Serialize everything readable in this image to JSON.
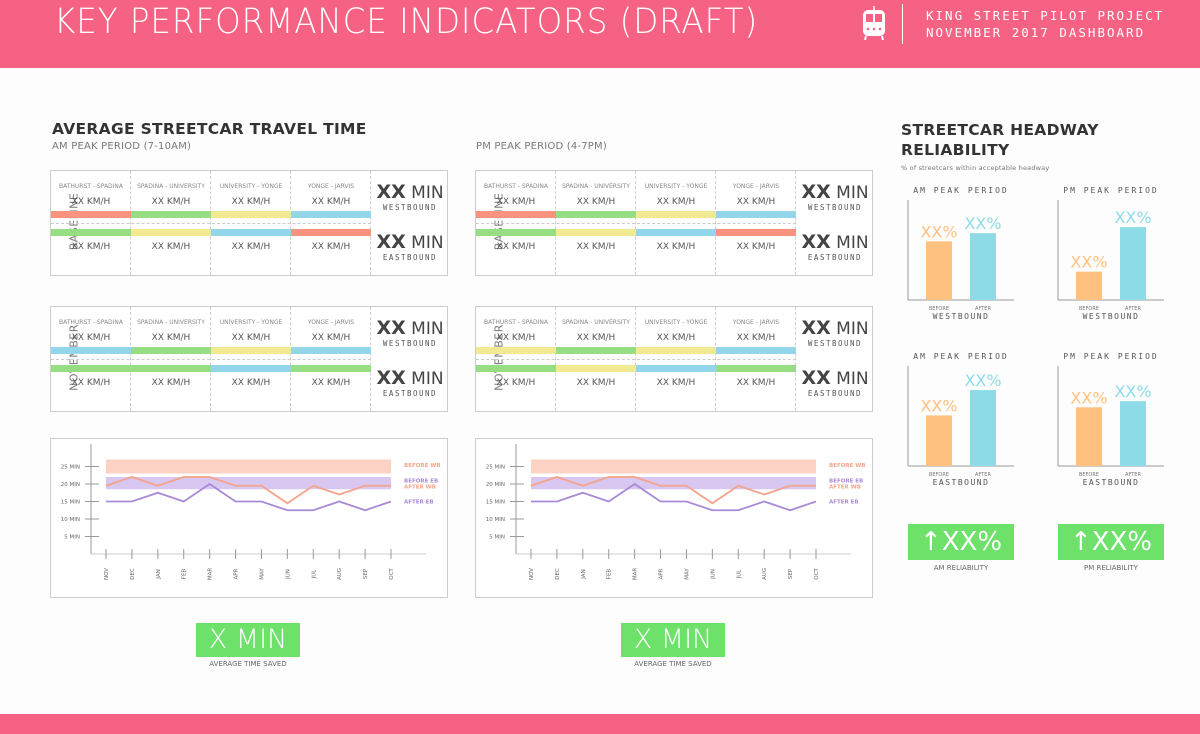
{
  "header": {
    "title": "KEY PERFORMANCE INDICATORS (DRAFT)",
    "icon": "streetcar-icon",
    "project": "KING STREET PILOT PROJECT",
    "dashboard": "NOVEMBER 2017 DASHBOARD"
  },
  "colors": {
    "brand": "#f56283",
    "red": "#f7937e",
    "green": "#97dd84",
    "yellow": "#f1ea93",
    "blue": "#93d5ea",
    "after_wb_line": "#f5a38a",
    "after_eb_line": "#a98ad6",
    "before_wb_band": "#fcd2c4",
    "before_eb_band": "#d8c8f1",
    "bar_before": "#ffc17f",
    "bar_after": "#8cdbe6",
    "kpi_green": "#6ee16b"
  },
  "travel_time": {
    "title": "AVERAGE STREETCAR TRAVEL TIME",
    "am_label": "AM PEAK PERIOD (7-10AM)",
    "pm_label": "PM PEAK PERIOD (4-7PM)",
    "segments": [
      "BATHURST - SPADINA",
      "SPADINA - UNIVERSITY",
      "UNIVERSITY - YONGE",
      "YONGE - JARVIS"
    ],
    "speed": "XX KM/H",
    "min_value": "XX",
    "min_unit": "MIN",
    "westbound": "WESTBOUND",
    "eastbound": "EASTBOUND",
    "tables": [
      {
        "id": "am-baseline",
        "label": "BASELINE",
        "wb_colors": [
          "red",
          "green",
          "yellow",
          "blue"
        ],
        "eb_colors": [
          "green",
          "yellow",
          "blue",
          "red"
        ]
      },
      {
        "id": "pm-baseline",
        "label": "BASELINE",
        "wb_colors": [
          "red",
          "green",
          "yellow",
          "blue"
        ],
        "eb_colors": [
          "green",
          "yellow",
          "blue",
          "red"
        ]
      },
      {
        "id": "am-november",
        "label": "NOVEMBER",
        "wb_colors": [
          "blue",
          "green",
          "yellow",
          "blue"
        ],
        "eb_colors": [
          "green",
          "green",
          "blue",
          "green"
        ]
      },
      {
        "id": "pm-november",
        "label": "NOVEMBER",
        "wb_colors": [
          "yellow",
          "green",
          "yellow",
          "blue"
        ],
        "eb_colors": [
          "green",
          "yellow",
          "blue",
          "green"
        ]
      }
    ],
    "time_saved": {
      "value": "X MIN",
      "caption": "AVERAGE TIME SAVED"
    }
  },
  "chart_data": [
    {
      "type": "line",
      "id": "am-trend",
      "x": [
        "NOV",
        "DEC",
        "JAN",
        "FEB",
        "MAR",
        "APR",
        "MAY",
        "JUN",
        "JUL",
        "AUG",
        "SEP",
        "OCT"
      ],
      "yticks": [
        5,
        10,
        15,
        20,
        25
      ],
      "ytick_labels": [
        "5 MIN",
        "10 MIN",
        "15 MIN",
        "20 MIN",
        "25 MIN"
      ],
      "ylim": [
        0,
        30
      ],
      "bands": [
        {
          "name": "BEFORE WB",
          "range": [
            23,
            27
          ]
        },
        {
          "name": "BEFORE EB",
          "range": [
            18.5,
            22
          ]
        }
      ],
      "series": [
        {
          "name": "AFTER WB",
          "values": [
            19.5,
            22,
            19.5,
            22,
            22,
            19.5,
            19.5,
            14.5,
            19.5,
            17,
            19.5,
            19.5
          ]
        },
        {
          "name": "AFTER EB",
          "values": [
            15,
            15,
            17.5,
            15,
            20,
            15,
            15,
            12.5,
            12.5,
            15,
            12.5,
            15
          ]
        }
      ],
      "legend": [
        "BEFORE WB",
        "BEFORE EB",
        "AFTER WB",
        "AFTER EB"
      ],
      "legend_position": "right"
    },
    {
      "type": "line",
      "id": "pm-trend",
      "x": [
        "NOV",
        "DEC",
        "JAN",
        "FEB",
        "MAR",
        "APR",
        "MAY",
        "JUN",
        "JUL",
        "AUG",
        "SEP",
        "OCT"
      ],
      "yticks": [
        5,
        10,
        15,
        20,
        25
      ],
      "ytick_labels": [
        "5 MIN",
        "10 MIN",
        "15 MIN",
        "20 MIN",
        "25 MIN"
      ],
      "ylim": [
        0,
        30
      ],
      "bands": [
        {
          "name": "BEFORE WB",
          "range": [
            23,
            27
          ]
        },
        {
          "name": "BEFORE EB",
          "range": [
            18.5,
            22
          ]
        }
      ],
      "series": [
        {
          "name": "AFTER WB",
          "values": [
            19.5,
            22,
            19.5,
            22,
            22,
            19.5,
            19.5,
            14.5,
            19.5,
            17,
            19.5,
            19.5
          ]
        },
        {
          "name": "AFTER EB",
          "values": [
            15,
            15,
            17.5,
            15,
            20,
            15,
            15,
            12.5,
            12.5,
            15,
            12.5,
            15
          ]
        }
      ],
      "legend": [
        "BEFORE WB",
        "BEFORE EB",
        "AFTER WB",
        "AFTER EB"
      ],
      "legend_position": "right"
    },
    {
      "type": "bar",
      "id": "am-wb",
      "title": "AM PEAK PERIOD",
      "xlabel": "WESTBOUND",
      "categories": [
        "BEFORE",
        "AFTER"
      ],
      "values": [
        58,
        66
      ],
      "labels": [
        "XX%",
        "XX%"
      ],
      "ylim": [
        0,
        100
      ]
    },
    {
      "type": "bar",
      "id": "pm-wb",
      "title": "PM PEAK PERIOD",
      "xlabel": "WESTBOUND",
      "categories": [
        "BEFORE",
        "AFTER"
      ],
      "values": [
        28,
        72
      ],
      "labels": [
        "XX%",
        "XX%"
      ],
      "ylim": [
        0,
        100
      ]
    },
    {
      "type": "bar",
      "id": "am-eb",
      "title": "AM PEAK PERIOD",
      "xlabel": "EASTBOUND",
      "categories": [
        "BEFORE",
        "AFTER"
      ],
      "values": [
        50,
        75
      ],
      "labels": [
        "XX%",
        "XX%"
      ],
      "ylim": [
        0,
        100
      ]
    },
    {
      "type": "bar",
      "id": "pm-eb",
      "title": "PM PEAK PERIOD",
      "xlabel": "EASTBOUND",
      "categories": [
        "BEFORE",
        "AFTER"
      ],
      "values": [
        58,
        64
      ],
      "labels": [
        "XX%",
        "XX%"
      ],
      "ylim": [
        0,
        100
      ]
    }
  ],
  "headway": {
    "title_line1": "STREETCAR HEADWAY",
    "title_line2": "RELIABILITY",
    "subtitle": "% of streetcars within acceptable headway",
    "am_reliability": {
      "value": "↑XX%",
      "caption": "AM RELIABILITY"
    },
    "pm_reliability": {
      "value": "↑XX%",
      "caption": "PM RELIABILITY"
    }
  }
}
